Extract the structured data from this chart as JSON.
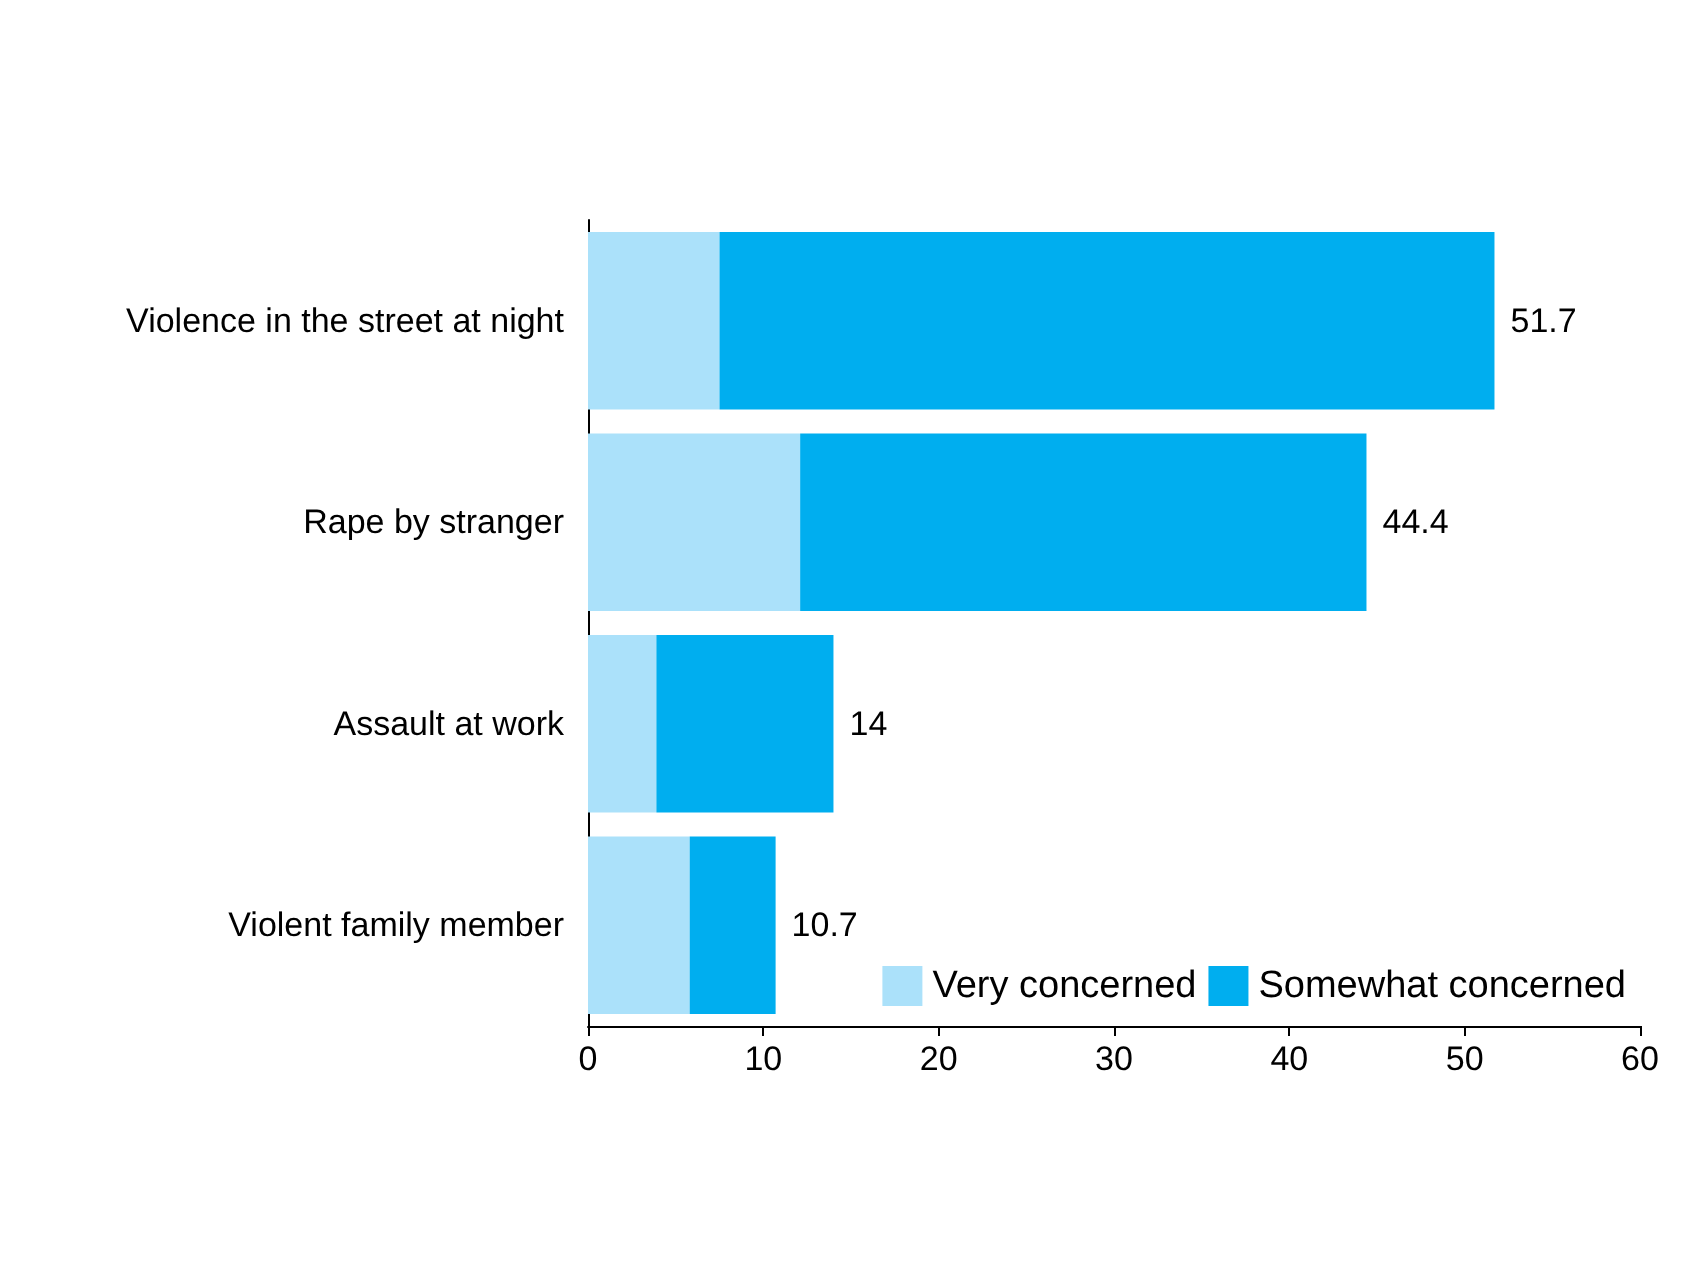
{
  "chart_data": {
    "type": "bar",
    "orientation": "horizontal",
    "stacked": true,
    "categories": [
      "Violence in the street at night",
      "Rape by stranger",
      "Assault at work",
      "Violent family member"
    ],
    "series": [
      {
        "name": "Very concerned",
        "color": "#abe1fa",
        "values": [
          7.5,
          12.1,
          3.9,
          5.8
        ]
      },
      {
        "name": "Somewhat concerned",
        "color": "#00aeef",
        "values": [
          44.2,
          32.3,
          10.1,
          4.9
        ]
      }
    ],
    "totals": [
      "51.7",
      "44.4",
      "14",
      "10.7"
    ],
    "xlim": [
      0,
      60
    ],
    "xticks": [
      0,
      10,
      20,
      30,
      40,
      50,
      60
    ],
    "grid": false,
    "legend": "bottom right"
  }
}
